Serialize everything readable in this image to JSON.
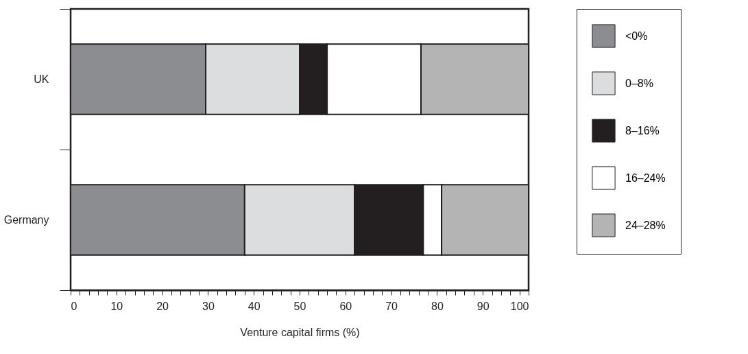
{
  "chart_data": {
    "type": "bar",
    "orientation": "horizontal",
    "stacked": true,
    "categories": [
      "UK",
      "Germany"
    ],
    "series": [
      {
        "name": "<0%",
        "color": "#8c8d91",
        "values": [
          29.5,
          38
        ]
      },
      {
        "name": "0–8%",
        "color": "#dcdddf",
        "values": [
          20.5,
          24
        ]
      },
      {
        "name": "8–16%",
        "color": "#231f20",
        "values": [
          6,
          15
        ]
      },
      {
        "name": "16–24%",
        "color": "#ffffff",
        "values": [
          20.5,
          4
        ]
      },
      {
        "name": "24–28%",
        "color": "#b4b4b4",
        "values": [
          23.5,
          19
        ]
      }
    ],
    "xlabel": "Venture capital firms (%)",
    "xlim": [
      0,
      100
    ],
    "xticks": [
      0,
      {
        "value": 2,
        "label": null
      },
      {
        "value": 4,
        "label": null
      },
      {
        "value": 6,
        "label": null
      },
      {
        "value": 8,
        "label": null
      },
      10,
      {
        "value": 12,
        "label": null
      },
      {
        "value": 14,
        "label": null
      },
      {
        "value": 16,
        "label": null
      },
      {
        "value": 18,
        "label": null
      },
      20,
      {
        "value": 22,
        "label": null
      },
      {
        "value": 24,
        "label": null
      },
      {
        "value": 26,
        "label": null
      },
      {
        "value": 28,
        "label": null
      },
      30,
      {
        "value": 32,
        "label": null
      },
      {
        "value": 34,
        "label": null
      },
      {
        "value": 36,
        "label": null
      },
      {
        "value": 38,
        "label": null
      },
      40,
      {
        "value": 42,
        "label": null
      },
      {
        "value": 44,
        "label": null
      },
      {
        "value": 46,
        "label": null
      },
      {
        "value": 48,
        "label": null
      },
      50,
      {
        "value": 52,
        "label": null
      },
      {
        "value": 54,
        "label": null
      },
      {
        "value": 56,
        "label": null
      },
      {
        "value": 58,
        "label": null
      },
      60,
      {
        "value": 62,
        "label": null
      },
      {
        "value": 64,
        "label": null
      },
      {
        "value": 66,
        "label": null
      },
      {
        "value": 68,
        "label": null
      },
      70,
      {
        "value": 72,
        "label": null
      },
      {
        "value": 74,
        "label": null
      },
      {
        "value": 76,
        "label": null
      },
      {
        "value": 78,
        "label": null
      },
      80,
      {
        "value": 82,
        "label": null
      },
      {
        "value": 84,
        "label": null
      },
      {
        "value": 86,
        "label": null
      },
      {
        "value": 88,
        "label": null
      },
      90,
      {
        "value": 92,
        "label": null
      },
      {
        "value": 94,
        "label": null
      },
      {
        "value": 96,
        "label": null
      },
      {
        "value": 98,
        "label": null
      },
      100
    ],
    "grid": false,
    "legend": "right"
  }
}
